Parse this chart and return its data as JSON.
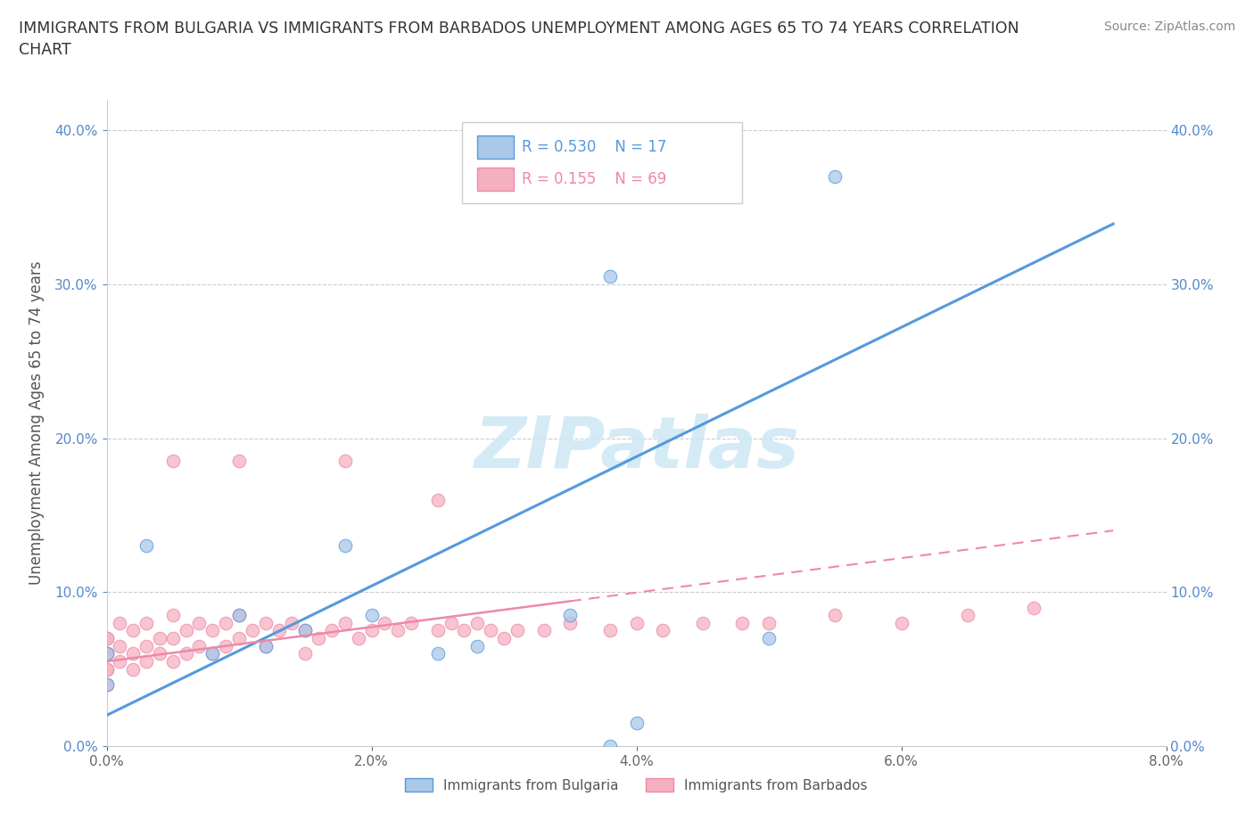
{
  "title": "IMMIGRANTS FROM BULGARIA VS IMMIGRANTS FROM BARBADOS UNEMPLOYMENT AMONG AGES 65 TO 74 YEARS CORRELATION\nCHART",
  "source": "Source: ZipAtlas.com",
  "ylabel": "Unemployment Among Ages 65 to 74 years",
  "xlim": [
    0.0,
    0.08
  ],
  "ylim": [
    0.0,
    0.42
  ],
  "xticks": [
    0.0,
    0.02,
    0.04,
    0.06,
    0.08
  ],
  "yticks": [
    0.0,
    0.1,
    0.2,
    0.3,
    0.4
  ],
  "xticklabels": [
    "0.0%",
    "2.0%",
    "4.0%",
    "6.0%",
    "8.0%"
  ],
  "yticklabels": [
    "0.0%",
    "10.0%",
    "20.0%",
    "30.0%",
    "40.0%"
  ],
  "bulgaria_color": "#aac8e8",
  "barbados_color": "#f5b0c0",
  "bulgaria_line_color": "#5599dd",
  "barbados_line_color": "#ee88aa",
  "watermark_color": "#cde8f5",
  "watermark_text": "ZIPatlas",
  "legend_R_bulgaria": "R = 0.530",
  "legend_N_bulgaria": "N = 17",
  "legend_R_barbados": "R = 0.155",
  "legend_N_barbados": "N = 69",
  "bulgaria_x": [
    0.0,
    0.0,
    0.003,
    0.008,
    0.01,
    0.012,
    0.015,
    0.018,
    0.02,
    0.025,
    0.028,
    0.035,
    0.038,
    0.04,
    0.05,
    0.055,
    0.038
  ],
  "bulgaria_y": [
    0.06,
    0.04,
    0.13,
    0.06,
    0.085,
    0.065,
    0.075,
    0.13,
    0.085,
    0.06,
    0.065,
    0.085,
    0.0,
    0.015,
    0.07,
    0.37,
    0.305
  ],
  "barbados_x": [
    0.0,
    0.0,
    0.0,
    0.0,
    0.0,
    0.0,
    0.0,
    0.001,
    0.001,
    0.001,
    0.002,
    0.002,
    0.002,
    0.003,
    0.003,
    0.003,
    0.004,
    0.004,
    0.005,
    0.005,
    0.005,
    0.006,
    0.006,
    0.007,
    0.007,
    0.008,
    0.008,
    0.009,
    0.009,
    0.01,
    0.01,
    0.011,
    0.012,
    0.012,
    0.013,
    0.014,
    0.015,
    0.015,
    0.016,
    0.017,
    0.018,
    0.019,
    0.02,
    0.021,
    0.022,
    0.023,
    0.025,
    0.026,
    0.027,
    0.028,
    0.029,
    0.03,
    0.031,
    0.033,
    0.035,
    0.038,
    0.04,
    0.042,
    0.045,
    0.048,
    0.05,
    0.055,
    0.06,
    0.065,
    0.07,
    0.005,
    0.01,
    0.018,
    0.025
  ],
  "barbados_y": [
    0.06,
    0.05,
    0.07,
    0.04,
    0.06,
    0.05,
    0.07,
    0.08,
    0.065,
    0.055,
    0.075,
    0.06,
    0.05,
    0.08,
    0.065,
    0.055,
    0.07,
    0.06,
    0.085,
    0.07,
    0.055,
    0.075,
    0.06,
    0.08,
    0.065,
    0.075,
    0.06,
    0.08,
    0.065,
    0.085,
    0.07,
    0.075,
    0.08,
    0.065,
    0.075,
    0.08,
    0.075,
    0.06,
    0.07,
    0.075,
    0.08,
    0.07,
    0.075,
    0.08,
    0.075,
    0.08,
    0.075,
    0.08,
    0.075,
    0.08,
    0.075,
    0.07,
    0.075,
    0.075,
    0.08,
    0.075,
    0.08,
    0.075,
    0.08,
    0.08,
    0.08,
    0.085,
    0.08,
    0.085,
    0.09,
    0.185,
    0.185,
    0.185,
    0.16
  ],
  "background_color": "#ffffff"
}
